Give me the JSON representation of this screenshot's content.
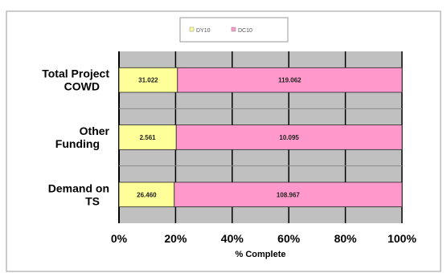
{
  "chart_data": {
    "type": "bar",
    "orientation": "horizontal",
    "stacked": "percent",
    "categories": [
      "Total Project\nCOWD",
      "Other\nFunding",
      "Demand on\nTS"
    ],
    "series": [
      {
        "name": "DY10",
        "values": [
          31.022,
          2.561,
          26.46
        ],
        "labels": [
          "31.022",
          "2.561",
          "26.460"
        ],
        "color": "#ffff99"
      },
      {
        "name": "DC10",
        "values": [
          119.062,
          10.095,
          108.967
        ],
        "labels": [
          "119.062",
          "10.095",
          "108.967"
        ],
        "color": "#ff99cc"
      }
    ],
    "xlabel": "% Complete",
    "xlim": [
      0,
      100
    ],
    "xticks": [
      "0%",
      "20%",
      "40%",
      "60%",
      "80%",
      "100%"
    ],
    "grid": true,
    "legend_position": "top-center",
    "plot_background": "#c0c0c0"
  }
}
